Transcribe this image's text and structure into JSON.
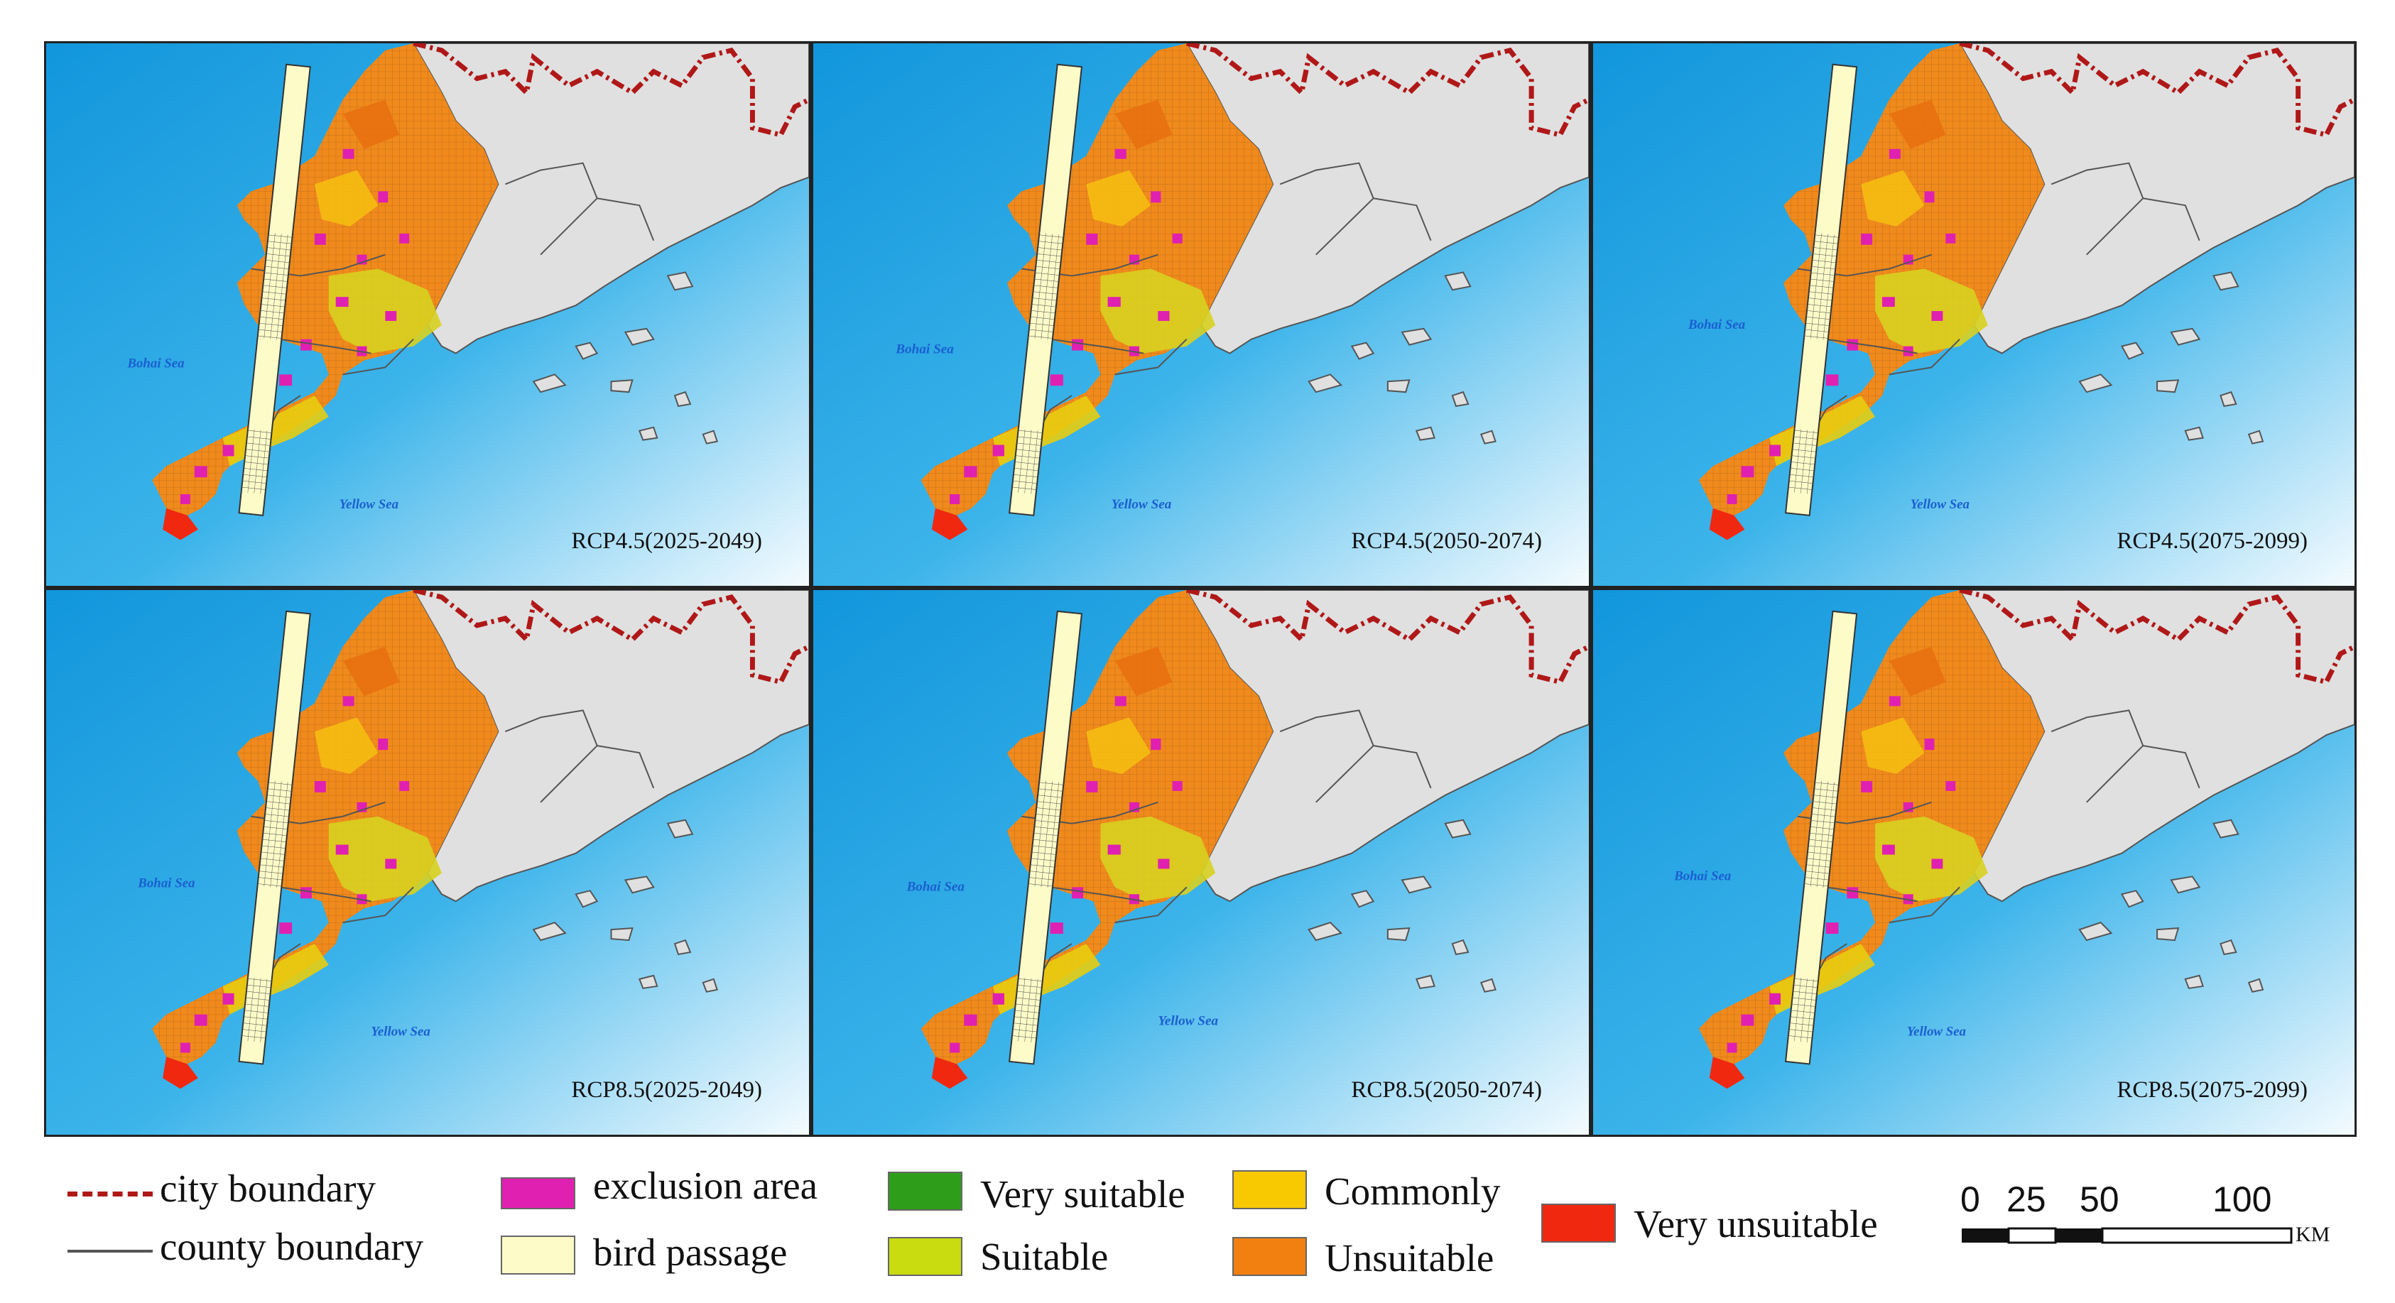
{
  "panels": [
    {
      "title": "RCP4.5(2025-2049)",
      "bohai": "Bohai Sea",
      "yellow": "Yellow Sea"
    },
    {
      "title": "RCP4.5(2050-2074)",
      "bohai": "Bohai Sea",
      "yellow": "Yellow Sea"
    },
    {
      "title": "RCP4.5(2075-2099)",
      "bohai": "Bohai Sea",
      "yellow": "Yellow Sea"
    },
    {
      "title": "RCP8.5(2025-2049)",
      "bohai": "Bohai Sea",
      "yellow": "Yellow Sea"
    },
    {
      "title": "RCP8.5(2050-2074)",
      "bohai": "Bohai Sea",
      "yellow": "Yellow Sea"
    },
    {
      "title": "RCP8.5(2075-2099)",
      "bohai": "Bohai Sea",
      "yellow": "Yellow Sea"
    }
  ],
  "legend": {
    "city_boundary": "city boundary",
    "county_boundary": "county boundary",
    "exclusion_area": "exclusion area",
    "bird_passage": "bird passage",
    "very_suitable": "Very suitable",
    "suitable": "Suitable",
    "commonly": "Commonly",
    "unsuitable": "Unsuitable",
    "very_unsuitable": "Very unsuitable"
  },
  "colors": {
    "city_boundary": "#b01818",
    "county_boundary": "#555555",
    "exclusion_area": "#e020b0",
    "bird_passage": "#fdfbc8",
    "very_suitable": "#2e9e1a",
    "suitable": "#c8dc10",
    "commonly": "#f8c800",
    "unsuitable": "#f28010",
    "very_unsuitable": "#f02810",
    "sea_dark": "#1aa0e0",
    "land_gray": "#e0e0e0"
  },
  "scalebar": {
    "ticks": [
      "0",
      "25",
      "50",
      "100"
    ],
    "unit": "KM"
  }
}
